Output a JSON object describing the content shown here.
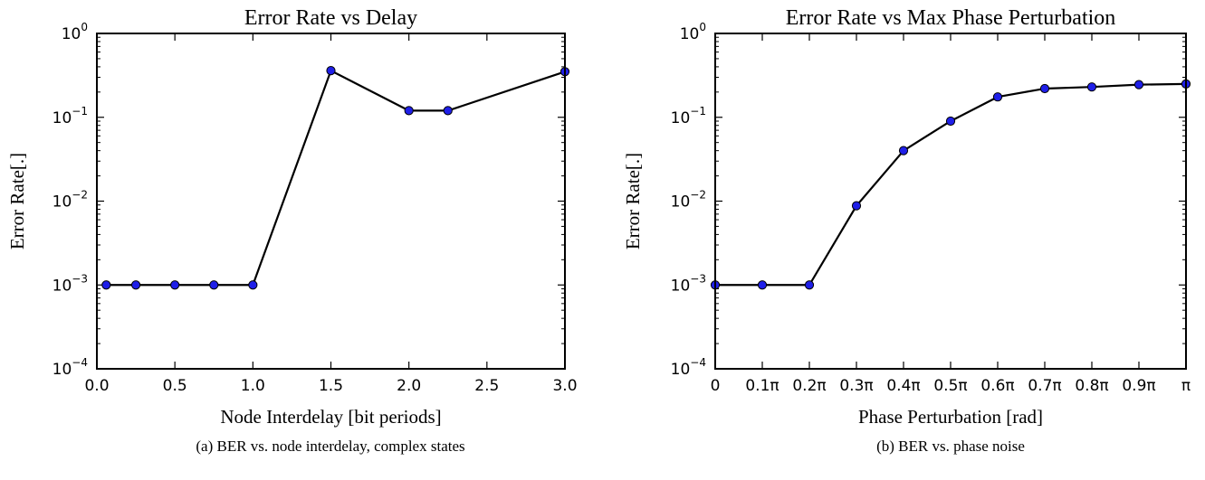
{
  "chart_data": [
    {
      "type": "line",
      "title": "Error Rate vs Delay",
      "xlabel": "Node Interdelay [bit periods]",
      "ylabel": "Error Rate[.]",
      "caption": "(a) BER vs. node interdelay, complex states",
      "xscale": "linear",
      "yscale": "log",
      "xlim": [
        0.0,
        3.0
      ],
      "ylim": [
        0.0001,
        1
      ],
      "xticks": [
        0.0,
        0.5,
        1.0,
        1.5,
        2.0,
        2.5,
        3.0
      ],
      "xtick_labels": [
        "0.0",
        "0.5",
        "1.0",
        "1.5",
        "2.0",
        "2.5",
        "3.0"
      ],
      "yticks": [
        0.0001,
        0.001,
        0.01,
        0.1,
        1
      ],
      "ytick_labels": [
        {
          "base": "10",
          "exp": "−4"
        },
        {
          "base": "10",
          "exp": "−3"
        },
        {
          "base": "10",
          "exp": "−2"
        },
        {
          "base": "10",
          "exp": "−1"
        },
        {
          "base": "10",
          "exp": "0"
        }
      ],
      "grid": false,
      "series": [
        {
          "x": [
            0.06,
            0.25,
            0.5,
            0.75,
            1.0,
            1.5,
            2.0,
            2.25,
            3.0
          ],
          "values": [
            0.001,
            0.001,
            0.001,
            0.001,
            0.001,
            0.36,
            0.12,
            0.12,
            0.35
          ],
          "line_color": "#000000",
          "marker_color": "#1f1fe8"
        }
      ]
    },
    {
      "type": "line",
      "title": "Error Rate vs Max Phase Perturbation",
      "xlabel": "Phase Perturbation [rad]",
      "ylabel": "Error Rate[.]",
      "caption": "(b) BER vs. phase noise",
      "xscale": "linear",
      "yscale": "log",
      "xlim": [
        0.0,
        1.0
      ],
      "ylim": [
        0.0001,
        1
      ],
      "xticks": [
        0.0,
        0.1,
        0.2,
        0.3,
        0.4,
        0.5,
        0.6,
        0.7,
        0.8,
        0.9,
        1.0
      ],
      "xtick_labels": [
        "0",
        "0.1π",
        "0.2π",
        "0.3π",
        "0.4π",
        "0.5π",
        "0.6π",
        "0.7π",
        "0.8π",
        "0.9π",
        "π"
      ],
      "yticks": [
        0.0001,
        0.001,
        0.01,
        0.1,
        1
      ],
      "ytick_labels": [
        {
          "base": "10",
          "exp": "−4"
        },
        {
          "base": "10",
          "exp": "−3"
        },
        {
          "base": "10",
          "exp": "−2"
        },
        {
          "base": "10",
          "exp": "−1"
        },
        {
          "base": "10",
          "exp": "0"
        }
      ],
      "grid": false,
      "series": [
        {
          "x": [
            0.0,
            0.1,
            0.2,
            0.3,
            0.4,
            0.5,
            0.6,
            0.7,
            0.8,
            0.9,
            1.0
          ],
          "values": [
            0.001,
            0.001,
            0.001,
            0.0088,
            0.04,
            0.09,
            0.175,
            0.22,
            0.23,
            0.245,
            0.25
          ],
          "line_color": "#000000",
          "marker_color": "#1f1fe8"
        }
      ]
    }
  ]
}
